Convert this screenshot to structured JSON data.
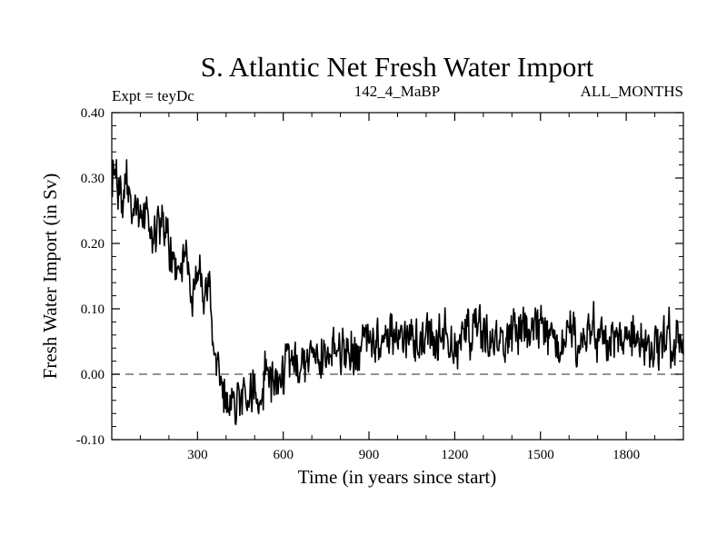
{
  "chart_data": {
    "type": "line",
    "title": "S. Atlantic Net Fresh Water Import",
    "subtitle_left": "Expt = teyDc",
    "subtitle_center": "142_4_MaBP",
    "subtitle_right": "ALL_MONTHS",
    "xlabel": "Time (in years since start)",
    "ylabel": "Fresh Water Import (in Sv)",
    "xlim": [
      0,
      2000
    ],
    "ylim": [
      -0.1,
      0.4
    ],
    "xticks": [
      300,
      600,
      900,
      1200,
      1500,
      1800
    ],
    "xtick_labels": [
      "300",
      "600",
      "900",
      "1200",
      "1500",
      "1800"
    ],
    "yticks": [
      -0.1,
      0.0,
      0.1,
      0.2,
      0.3,
      0.4
    ],
    "ytick_labels": [
      "-0.10",
      "0.00",
      "0.10",
      "0.20",
      "0.30",
      "0.40"
    ],
    "reference_line": {
      "y": 0.0,
      "style": "dashed"
    },
    "series": [
      {
        "name": "Net fresh water import",
        "x": [
          0,
          20,
          40,
          60,
          80,
          100,
          120,
          140,
          160,
          180,
          200,
          220,
          240,
          260,
          280,
          300,
          320,
          340,
          350,
          360,
          380,
          400,
          430,
          460,
          500,
          540,
          580,
          620,
          660,
          700,
          750,
          800,
          850,
          900,
          950,
          1000,
          1050,
          1100,
          1150,
          1200,
          1250,
          1300,
          1350,
          1400,
          1450,
          1500,
          1550,
          1600,
          1650,
          1700,
          1750,
          1800,
          1850,
          1900,
          1950,
          2000
        ],
        "values": [
          0.29,
          0.3,
          0.27,
          0.28,
          0.26,
          0.24,
          0.25,
          0.22,
          0.23,
          0.2,
          0.21,
          0.17,
          0.16,
          0.18,
          0.14,
          0.13,
          0.12,
          0.11,
          0.1,
          0.02,
          -0.02,
          -0.03,
          -0.04,
          -0.02,
          -0.03,
          0.0,
          -0.01,
          0.01,
          0.02,
          0.02,
          0.03,
          0.04,
          0.04,
          0.05,
          0.05,
          0.06,
          0.05,
          0.05,
          0.06,
          0.05,
          0.06,
          0.05,
          0.05,
          0.06,
          0.05,
          0.06,
          0.05,
          0.06,
          0.06,
          0.06,
          0.05,
          0.06,
          0.05,
          0.05,
          0.04,
          0.04
        ],
        "noise_amplitude": 0.035,
        "color": "#000000"
      }
    ]
  }
}
